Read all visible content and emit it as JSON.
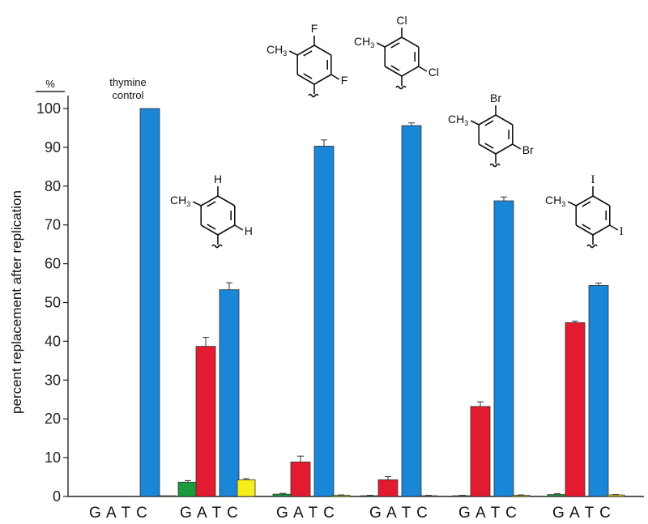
{
  "chart_data": {
    "type": "bar",
    "ylabel": "percent replacement after replication",
    "y_unit": "%",
    "ylim": [
      0,
      100
    ],
    "yticks": [
      0,
      10,
      20,
      30,
      40,
      50,
      60,
      70,
      80,
      90,
      100
    ],
    "bases": [
      "G",
      "A",
      "T",
      "C"
    ],
    "colors": {
      "G": "#1a9a3a",
      "A": "#e21b30",
      "T": "#1a86d8",
      "C": "#f5ee1a"
    },
    "groups": [
      {
        "label": "thymine control",
        "values": [
          0,
          0,
          100,
          0.2
        ],
        "errors": [
          0,
          0,
          0,
          0
        ]
      },
      {
        "label": "",
        "substituents": [
          "H",
          "H"
        ],
        "values": [
          3.7,
          38.7,
          53.3,
          4.3
        ],
        "errors": [
          0.4,
          2.3,
          1.8,
          0.3
        ]
      },
      {
        "label": "",
        "substituents": [
          "F",
          "F"
        ],
        "values": [
          0.6,
          8.9,
          90.3,
          0.3
        ],
        "errors": [
          0.2,
          1.5,
          1.6,
          0.1
        ]
      },
      {
        "label": "",
        "substituents": [
          "Cl",
          "Cl"
        ],
        "values": [
          0.2,
          4.3,
          95.6,
          0.2
        ],
        "errors": [
          0.1,
          0.8,
          0.7,
          0.1
        ]
      },
      {
        "label": "",
        "substituents": [
          "Br",
          "Br"
        ],
        "values": [
          0.2,
          23.2,
          76.2,
          0.3
        ],
        "errors": [
          0.1,
          1.2,
          1.0,
          0.1
        ]
      },
      {
        "label": "",
        "substituents": [
          "I",
          "I"
        ],
        "values": [
          0.5,
          44.8,
          54.4,
          0.4
        ],
        "errors": [
          0.2,
          0.4,
          0.6,
          0.1
        ]
      }
    ],
    "methyl_label": "CH3"
  }
}
